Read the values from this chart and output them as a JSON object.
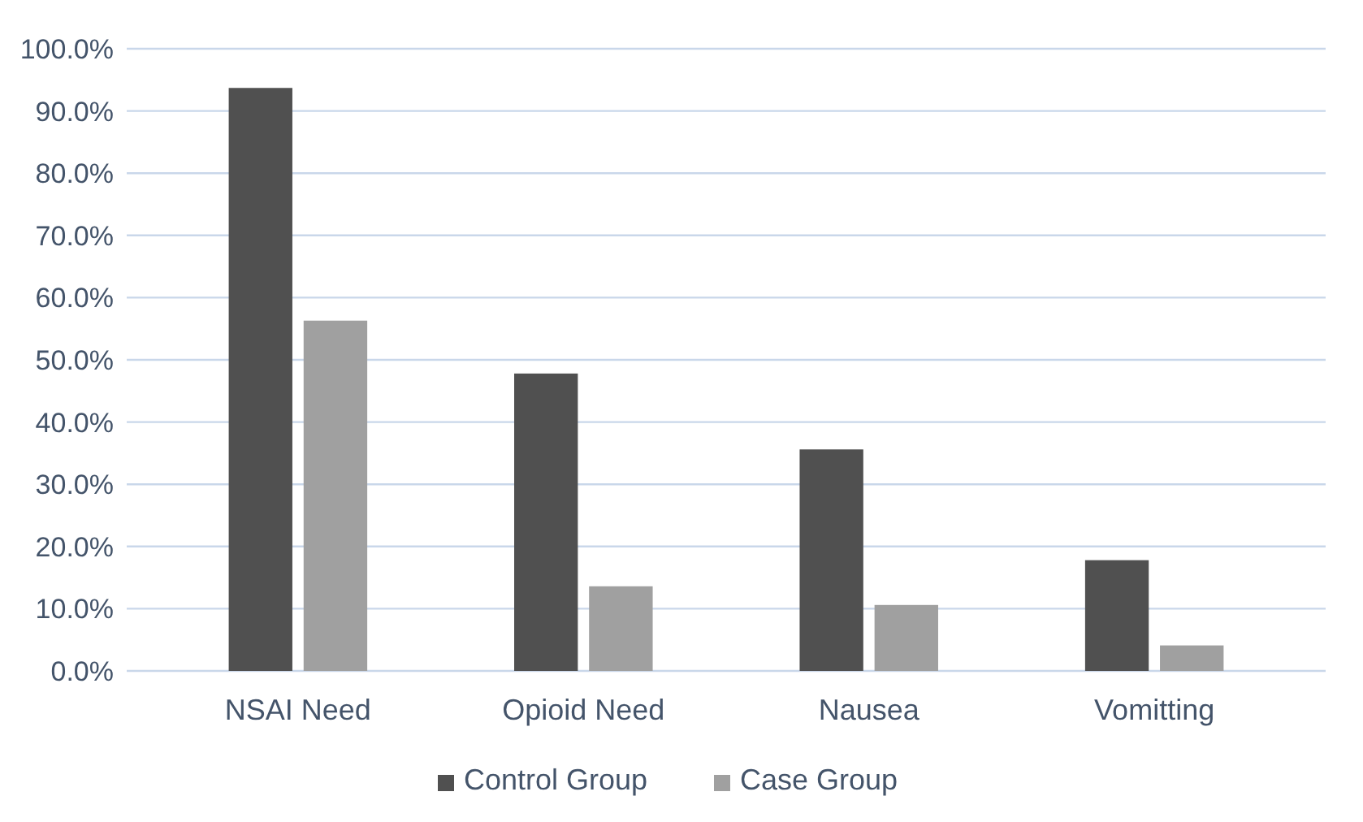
{
  "chart_data": {
    "type": "bar",
    "categories": [
      "NSAI Need",
      "Opioid Need",
      "Nausea",
      "Vomitting"
    ],
    "series": [
      {
        "name": "Control Group",
        "color": "#505050",
        "values": [
          93.7,
          47.8,
          35.6,
          17.8
        ]
      },
      {
        "name": "Case Group",
        "color": "#a0a0a0",
        "values": [
          56.3,
          13.6,
          10.6,
          4.1
        ]
      }
    ],
    "ylim": [
      0,
      100
    ],
    "yticks": [
      {
        "value": 0,
        "label": "0.0%"
      },
      {
        "value": 10,
        "label": "10.0%"
      },
      {
        "value": 20,
        "label": "20.0%"
      },
      {
        "value": 30,
        "label": "30.0%"
      },
      {
        "value": 40,
        "label": "40.0%"
      },
      {
        "value": 50,
        "label": "50.0%"
      },
      {
        "value": 60,
        "label": "60.0%"
      },
      {
        "value": 70,
        "label": "70.0%"
      },
      {
        "value": 80,
        "label": "80.0%"
      },
      {
        "value": 90,
        "label": "90.0%"
      },
      {
        "value": 100,
        "label": "100.0%"
      }
    ],
    "grid": "y",
    "legend": "bottom"
  }
}
